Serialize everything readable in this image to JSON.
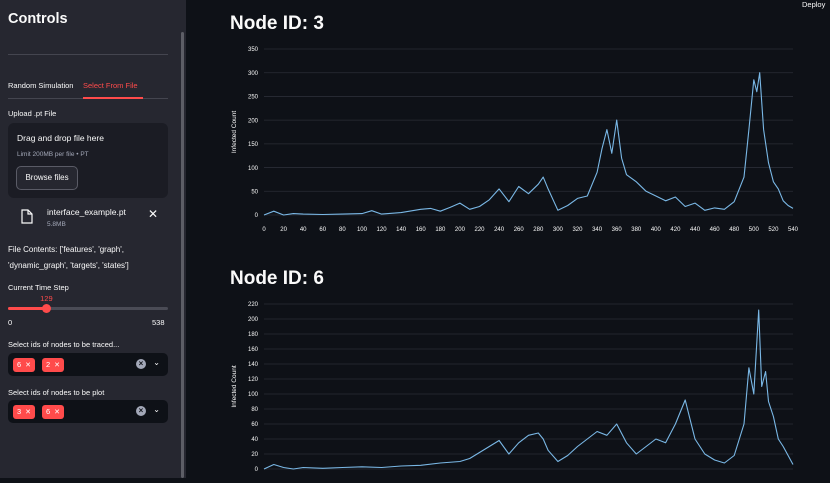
{
  "sidebar": {
    "title": "Controls",
    "tabs": [
      {
        "label": "Random Simulation",
        "active": false
      },
      {
        "label": "Select From File",
        "active": true
      }
    ],
    "upload": {
      "label": "Upload .pt File",
      "dropzone_title": "Drag and drop file here",
      "limit": "Limit 200MB per file • PT",
      "browse_label": "Browse files",
      "file_name": "interface_example.pt",
      "file_size": "5.8MB",
      "remove_icon": "close-icon"
    },
    "file_contents_line1": "File Contents: ['features', 'graph',",
    "file_contents_line2": "'dynamic_graph', 'targets', 'states']",
    "time_step": {
      "label": "Current Time Step",
      "value": "129",
      "min": "0",
      "max": "538",
      "fraction": 0.2398
    },
    "trace_select": {
      "label": "Select ids of nodes to be traced...",
      "chips": [
        "6",
        "2"
      ]
    },
    "plot_select": {
      "label": "Select ids of nodes to be plot",
      "chips": [
        "3",
        "6"
      ]
    },
    "accent_color": "#ff4b4b"
  },
  "header": {
    "deploy_label": "Deploy"
  },
  "charts": [
    {
      "title": "Node ID: 3",
      "chart_data": {
        "type": "line",
        "ylabel": "Infected Count",
        "xlabel": "",
        "xlim": [
          0,
          540
        ],
        "ylim": [
          0,
          350
        ],
        "xticks": [
          0,
          20,
          40,
          60,
          80,
          100,
          120,
          140,
          160,
          180,
          200,
          220,
          240,
          260,
          280,
          300,
          320,
          340,
          360,
          380,
          400,
          420,
          440,
          460,
          480,
          500,
          520,
          540
        ],
        "yticks": [
          0,
          50,
          100,
          150,
          200,
          250,
          300,
          350
        ],
        "line_color": "#7ab8e6",
        "x": [
          0,
          10,
          20,
          30,
          40,
          60,
          80,
          100,
          110,
          120,
          140,
          160,
          170,
          180,
          190,
          200,
          210,
          220,
          230,
          240,
          250,
          260,
          270,
          280,
          285,
          290,
          300,
          310,
          320,
          330,
          340,
          345,
          350,
          355,
          360,
          365,
          370,
          380,
          390,
          400,
          410,
          420,
          430,
          440,
          450,
          460,
          470,
          480,
          490,
          495,
          500,
          503,
          506,
          510,
          515,
          520,
          525,
          530,
          535,
          540
        ],
        "y": [
          0,
          8,
          0,
          3,
          2,
          1,
          2,
          3,
          9,
          2,
          5,
          12,
          14,
          8,
          16,
          25,
          12,
          18,
          32,
          55,
          28,
          60,
          45,
          65,
          80,
          55,
          10,
          20,
          35,
          40,
          90,
          140,
          180,
          130,
          200,
          120,
          85,
          70,
          50,
          40,
          30,
          38,
          18,
          25,
          10,
          15,
          12,
          28,
          80,
          180,
          285,
          260,
          300,
          180,
          110,
          70,
          55,
          30,
          20,
          14
        ]
      }
    },
    {
      "title": "Node ID: 6",
      "chart_data": {
        "type": "line",
        "ylabel": "Infected Count",
        "xlabel": "",
        "xlim": [
          0,
          540
        ],
        "ylim": [
          0,
          220
        ],
        "yticks": [
          0,
          20,
          40,
          60,
          80,
          100,
          120,
          140,
          160,
          180,
          200,
          220
        ],
        "line_color": "#7ab8e6",
        "x": [
          0,
          10,
          20,
          30,
          40,
          60,
          80,
          100,
          120,
          140,
          160,
          180,
          200,
          210,
          220,
          230,
          240,
          250,
          260,
          270,
          280,
          285,
          290,
          300,
          310,
          320,
          330,
          340,
          350,
          360,
          370,
          380,
          390,
          400,
          410,
          420,
          430,
          440,
          450,
          460,
          470,
          480,
          490,
          495,
          500,
          505,
          508,
          512,
          515,
          520,
          525,
          530,
          535,
          540
        ],
        "y": [
          0,
          6,
          2,
          0,
          2,
          1,
          2,
          3,
          2,
          4,
          5,
          8,
          10,
          14,
          22,
          30,
          38,
          20,
          35,
          45,
          48,
          40,
          25,
          10,
          18,
          30,
          40,
          50,
          45,
          60,
          35,
          20,
          30,
          40,
          35,
          60,
          92,
          40,
          20,
          12,
          8,
          18,
          60,
          135,
          100,
          212,
          110,
          130,
          90,
          70,
          40,
          30,
          18,
          6
        ]
      }
    }
  ]
}
